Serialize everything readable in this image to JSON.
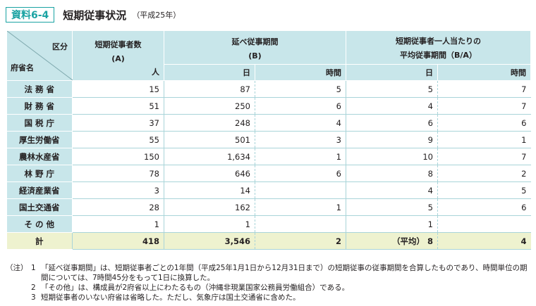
{
  "header": {
    "badge": "資料6-4",
    "title": "短期従事状況",
    "subtitle": "（平成25年）"
  },
  "table": {
    "corner_top": "区分",
    "corner_bottom": "府省名",
    "col_a_line1": "短期従事者数",
    "col_a_line2": "(A)",
    "col_a_unit": "人",
    "col_b_line1": "延べ従事期間",
    "col_b_line2": "(B)",
    "col_b_unit_days": "日",
    "col_b_unit_hours": "時間",
    "col_c_line1": "短期従事者一人当たりの",
    "col_c_line2": "平均従事期間（B/A）",
    "col_c_unit_days": "日",
    "col_c_unit_hours": "時間",
    "rows": [
      {
        "name": "法 務 省",
        "a": "15",
        "bd": "87",
        "bh": "5",
        "cd": "5",
        "ch": "7"
      },
      {
        "name": "財 務 省",
        "a": "51",
        "bd": "250",
        "bh": "6",
        "cd": "4",
        "ch": "7"
      },
      {
        "name": "国 税 庁",
        "a": "37",
        "bd": "248",
        "bh": "4",
        "cd": "6",
        "ch": "6"
      },
      {
        "name": "厚生労働省",
        "a": "55",
        "bd": "501",
        "bh": "3",
        "cd": "9",
        "ch": "1"
      },
      {
        "name": "農林水産省",
        "a": "150",
        "bd": "1,634",
        "bh": "1",
        "cd": "10",
        "ch": "7"
      },
      {
        "name": "林 野 庁",
        "a": "78",
        "bd": "646",
        "bh": "6",
        "cd": "8",
        "ch": "2"
      },
      {
        "name": "経済産業省",
        "a": "3",
        "bd": "14",
        "bh": "",
        "cd": "4",
        "ch": "5"
      },
      {
        "name": "国土交通省",
        "a": "28",
        "bd": "162",
        "bh": "1",
        "cd": "5",
        "ch": "6"
      },
      {
        "name": "そ の 他",
        "a": "1",
        "bd": "1",
        "bh": "",
        "cd": "1",
        "ch": ""
      }
    ],
    "total": {
      "name": "計",
      "a": "418",
      "bd": "3,546",
      "bh": "2",
      "cd_prefix": "（平均）",
      "cd": "8",
      "ch": "4"
    }
  },
  "notes": {
    "label": "（注）",
    "items": [
      {
        "num": "1",
        "text": "「延べ従事期間」は、短期従事者ごとの1年間（平成25年1月1日から12月31日まで）の短期従事の従事期間を合算したものであり、時間単位の期間については、7時間45分をもって1日に換算した。"
      },
      {
        "num": "2",
        "text": "「その他」は、構成員が2府省以上にわたるもの（沖縄非現業国家公務員労働組合）である。"
      },
      {
        "num": "3",
        "text": "短期従事者のいない府省は省略した。ただし、気象庁は国土交通省に含めた。"
      }
    ]
  },
  "colors": {
    "accent": "#1aa3a3",
    "header_bg": "#c8e6ea",
    "total_bg": "#eef2cf"
  }
}
